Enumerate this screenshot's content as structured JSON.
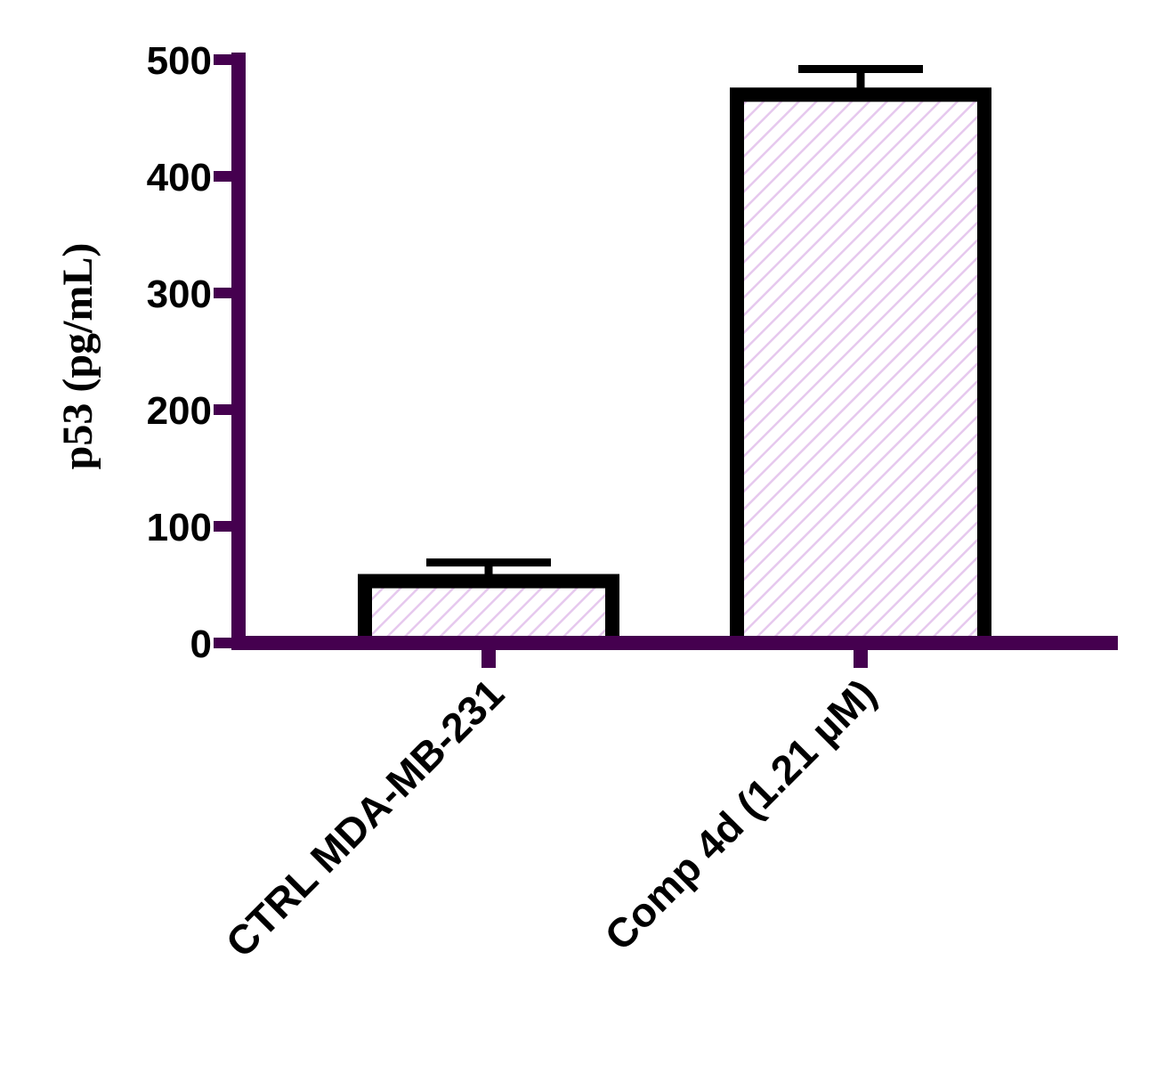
{
  "chart_data": {
    "type": "bar",
    "title": "",
    "xlabel": "",
    "ylabel": "p53 (pg/mL)",
    "categories": [
      "CTRL MDA-MB-231",
      "Comp 4d (1.21 µM)"
    ],
    "series": [
      {
        "values": [
          53,
          470
        ],
        "errors": [
          16,
          22
        ]
      }
    ],
    "ylim": [
      0,
      500
    ],
    "yticks": [
      0,
      100,
      200,
      300,
      400,
      500
    ],
    "ytick_labels": [
      "0",
      "100",
      "200",
      "300",
      "400",
      "500"
    ],
    "grid": false,
    "legend": "none",
    "colors": {
      "axis": "#45004f",
      "bar_outline": "#000000",
      "bar_hatch": "#e6c8ee",
      "error_bar": "#45004f"
    }
  }
}
